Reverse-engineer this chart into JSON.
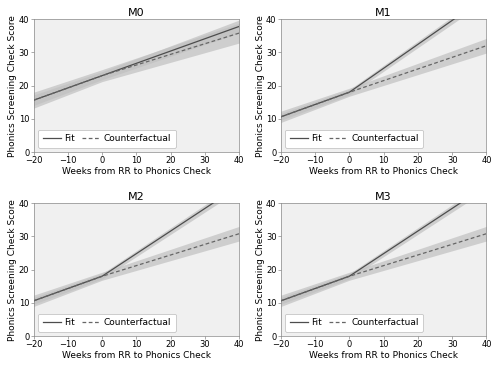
{
  "titles": [
    "M0",
    "M1",
    "M2",
    "M3"
  ],
  "xlabel": "Weeks from RR to Phonics Check",
  "ylabel": "Phonics Screening Check Score",
  "x_range": [
    -20,
    40
  ],
  "x_ticks": [
    -20,
    -10,
    0,
    10,
    20,
    30,
    40
  ],
  "y_range": [
    0,
    40
  ],
  "y_ticks": [
    0,
    10,
    20,
    30,
    40
  ],
  "knot": 0,
  "models": {
    "M0": {
      "fit_y_at_x0": 23,
      "fit_slope_before": 0.37,
      "fit_slope_after": 0.37,
      "cf_y_at_x0": 23,
      "cf_slope_before": 0.37,
      "cf_slope_after": 0.32,
      "fit_ci_base": 1.2,
      "cf_ci_base": 1.8,
      "fit_ci_grow": 0.018,
      "cf_ci_grow": 0.03
    },
    "M1": {
      "fit_y_at_x0": 18,
      "fit_slope_before": 0.37,
      "fit_slope_after": 0.72,
      "cf_y_at_x0": 18,
      "cf_slope_before": 0.37,
      "cf_slope_after": 0.35,
      "fit_ci_base": 0.8,
      "cf_ci_base": 1.2,
      "fit_ci_grow": 0.01,
      "cf_ci_grow": 0.025
    },
    "M2": {
      "fit_y_at_x0": 18,
      "fit_slope_before": 0.37,
      "fit_slope_after": 0.68,
      "cf_y_at_x0": 18,
      "cf_slope_before": 0.37,
      "cf_slope_after": 0.32,
      "fit_ci_base": 0.8,
      "cf_ci_base": 1.2,
      "fit_ci_grow": 0.01,
      "cf_ci_grow": 0.025
    },
    "M3": {
      "fit_y_at_x0": 18,
      "fit_slope_before": 0.37,
      "fit_slope_after": 0.68,
      "cf_y_at_x0": 18,
      "cf_slope_before": 0.37,
      "cf_slope_after": 0.32,
      "fit_ci_base": 0.8,
      "cf_ci_base": 1.2,
      "fit_ci_grow": 0.01,
      "cf_ci_grow": 0.025
    }
  },
  "fit_color": "#4d4d4d",
  "cf_color": "#666666",
  "ci_color": "#c0c0c0",
  "ci_alpha": 0.7,
  "line_width": 0.9,
  "title_fontsize": 8,
  "label_fontsize": 6.5,
  "tick_fontsize": 6,
  "legend_fontsize": 6.5,
  "background_color": "#ffffff",
  "plot_bg_color": "#f0f0f0"
}
